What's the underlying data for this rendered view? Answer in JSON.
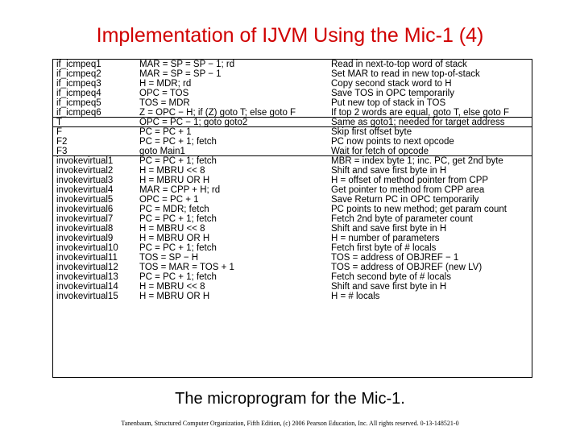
{
  "title": "Implementation of IJVM Using the Mic-1  (4)",
  "caption": "The microprogram for the Mic-1.",
  "footer": "Tanenbaum, Structured Computer Organization, Fifth Edition, (c) 2006 Pearson Education, Inc. All rights reserved. 0-13-148521-0",
  "rows": [
    {
      "label": "if_icmpeq1",
      "operation": "MAR = SP = SP − 1; rd",
      "comment": "Read in next-to-top word of stack"
    },
    {
      "label": "if_icmpeq2",
      "operation": "MAR = SP = SP − 1",
      "comment": "Set MAR to read in new top-of-stack"
    },
    {
      "label": "if_icmpeq3",
      "operation": "H = MDR; rd",
      "comment": "Copy second stack word to H"
    },
    {
      "label": "if_icmpeq4",
      "operation": "OPC = TOS",
      "comment": "Save TOS in OPC temporarily"
    },
    {
      "label": "if_icmpeq5",
      "operation": "TOS = MDR",
      "comment": "Put new top of stack in TOS"
    },
    {
      "label": "if_icmpeq6",
      "operation": "Z = OPC − H; if (Z) goto T; else goto F",
      "comment": "If top 2 words are equal, goto T, else goto F"
    },
    {
      "label": "T",
      "operation": "OPC = PC − 1; goto goto2",
      "comment": "Same as goto1; needed for target address"
    },
    {
      "label": "F",
      "operation": "PC = PC + 1",
      "comment": "Skip first offset byte"
    },
    {
      "label": "F2",
      "operation": "PC = PC + 1; fetch",
      "comment": "PC now points to next opcode"
    },
    {
      "label": "F3",
      "operation": "goto Main1",
      "comment": "Wait for fetch of opcode"
    },
    {
      "label": "invokevirtual1",
      "operation": "PC = PC + 1; fetch",
      "comment": "MBR = index byte 1; inc. PC, get 2nd byte"
    },
    {
      "label": "invokevirtual2",
      "operation": "H = MBRU << 8",
      "comment": "Shift and save first byte in H"
    },
    {
      "label": "invokevirtual3",
      "operation": "H = MBRU OR H",
      "comment": "H = offset of method pointer from CPP"
    },
    {
      "label": "invokevirtual4",
      "operation": "MAR = CPP + H; rd",
      "comment": "Get pointer to method from CPP area"
    },
    {
      "label": "invokevirtual5",
      "operation": "OPC = PC + 1",
      "comment": "Save Return PC in OPC temporarily"
    },
    {
      "label": "invokevirtual6",
      "operation": "PC = MDR; fetch",
      "comment": "PC points to new method; get param count"
    },
    {
      "label": "invokevirtual7",
      "operation": "PC = PC + 1; fetch",
      "comment": "Fetch 2nd byte of parameter count"
    },
    {
      "label": "invokevirtual8",
      "operation": "H = MBRU << 8",
      "comment": "Shift and save first byte in H"
    },
    {
      "label": "invokevirtual9",
      "operation": "H = MBRU OR H",
      "comment": "H = number of parameters"
    },
    {
      "label": "invokevirtual10",
      "operation": "PC = PC + 1; fetch",
      "comment": "Fetch first byte of # locals"
    },
    {
      "label": "invokevirtual11",
      "operation": "TOS = SP − H",
      "comment": "TOS = address of OBJREF − 1"
    },
    {
      "label": "invokevirtual12",
      "operation": "TOS = MAR = TOS + 1",
      "comment": "TOS = address of OBJREF (new LV)"
    },
    {
      "label": "invokevirtual13",
      "operation": "PC = PC + 1; fetch",
      "comment": "Fetch second byte of # locals"
    },
    {
      "label": "invokevirtual14",
      "operation": "H = MBRU << 8",
      "comment": "Shift and save first byte in H"
    },
    {
      "label": "invokevirtual15",
      "operation": "H = MBRU OR H",
      "comment": "H = # locals"
    }
  ],
  "separators_after": [
    5,
    6,
    9
  ]
}
